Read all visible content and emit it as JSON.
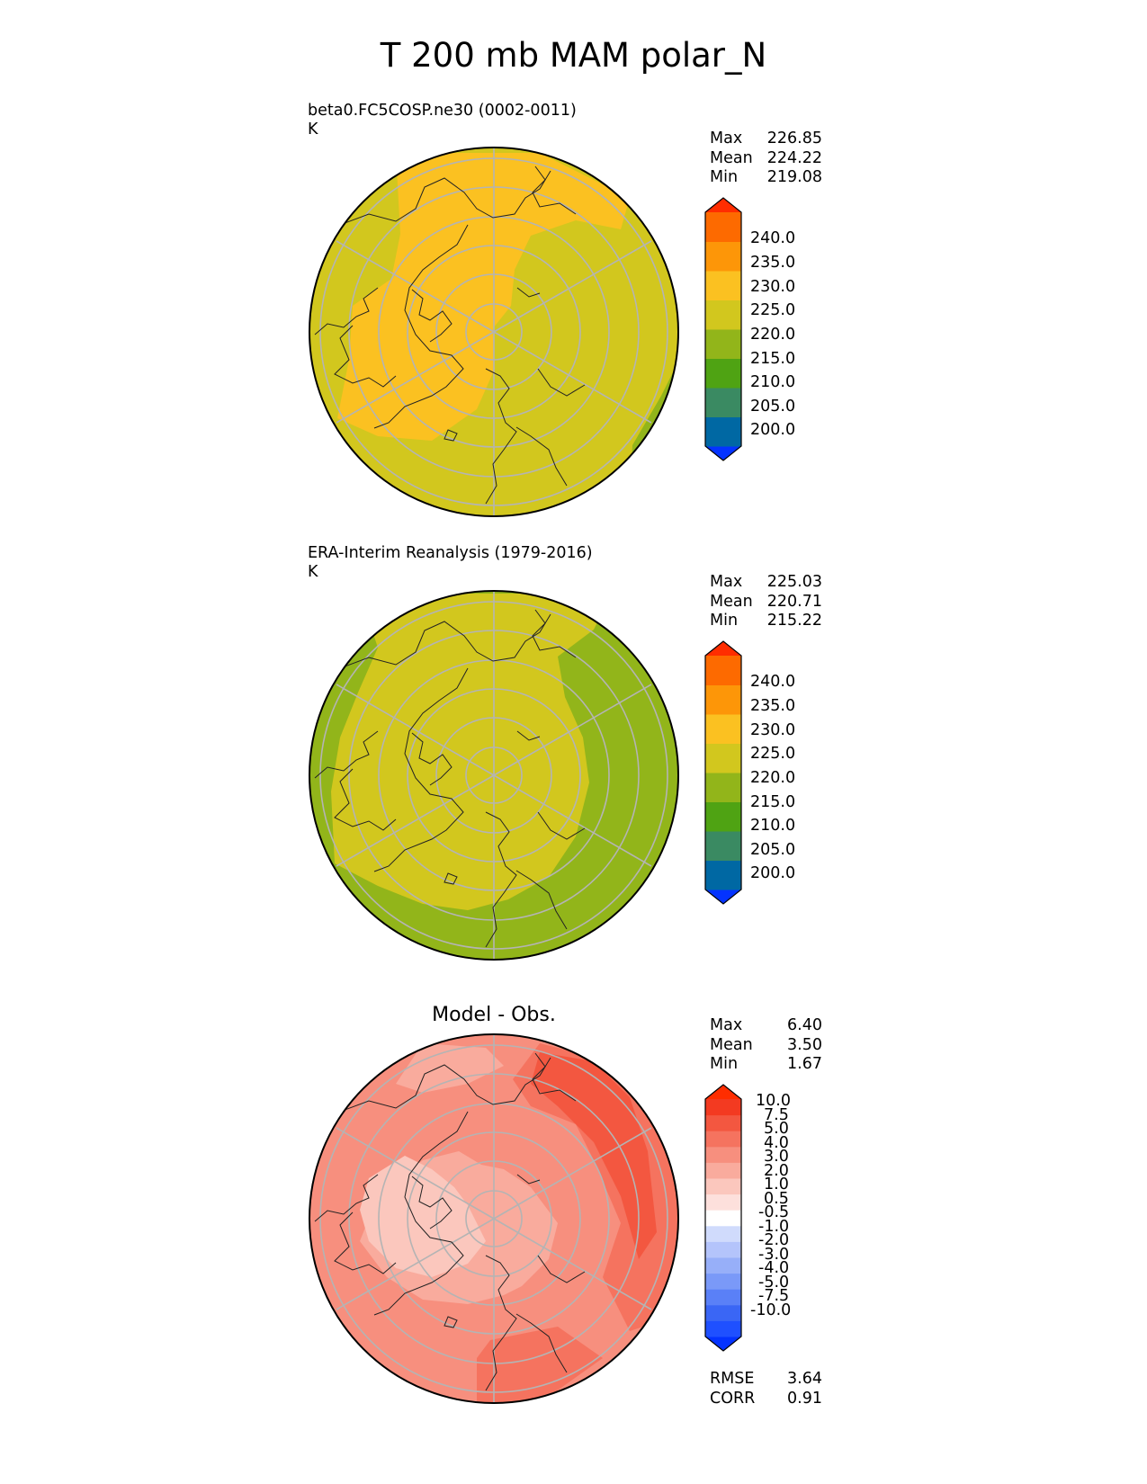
{
  "figure": {
    "title": "T 200 mb MAM polar_N"
  },
  "panels": [
    {
      "title_line1": "beta0.FC5COSP.ne30 (0002-0011)",
      "title_line2": "K",
      "stats": [
        {
          "label": "Max",
          "value": "226.85"
        },
        {
          "label": "Mean",
          "value": "224.22"
        },
        {
          "label": "Min",
          "value": "219.08"
        }
      ],
      "colorbar": {
        "tick_labels": [
          "240.0",
          "235.0",
          "230.0",
          "225.0",
          "220.0",
          "215.0",
          "210.0",
          "205.0",
          "200.0"
        ],
        "colors": [
          "#0433ff",
          "#0068a3",
          "#3a8a62",
          "#4fa313",
          "#92b51a",
          "#d2c71e",
          "#fbc121",
          "#fd9608",
          "#fd6a00",
          "#ff2d00"
        ]
      }
    },
    {
      "title_line1": "ERA-Interim Reanalysis (1979-2016)",
      "title_line2": "K",
      "stats": [
        {
          "label": "Max",
          "value": "225.03"
        },
        {
          "label": "Mean",
          "value": "220.71"
        },
        {
          "label": "Min",
          "value": "215.22"
        }
      ],
      "colorbar": {
        "tick_labels": [
          "240.0",
          "235.0",
          "230.0",
          "225.0",
          "220.0",
          "215.0",
          "210.0",
          "205.0",
          "200.0"
        ],
        "colors": [
          "#0433ff",
          "#0068a3",
          "#3a8a62",
          "#4fa313",
          "#92b51a",
          "#d2c71e",
          "#fbc121",
          "#fd9608",
          "#fd6a00",
          "#ff2d00"
        ]
      }
    },
    {
      "title_center": "Model - Obs.",
      "stats": [
        {
          "label": "Max",
          "value": "6.40"
        },
        {
          "label": "Mean",
          "value": "3.50"
        },
        {
          "label": "Min",
          "value": "1.67"
        }
      ],
      "colorbar": {
        "tick_labels": [
          "10.0",
          "7.5",
          "5.0",
          "4.0",
          "3.0",
          "2.0",
          "1.0",
          "0.5",
          "-0.5",
          "-1.0",
          "-2.0",
          "-3.0",
          "-4.0",
          "-5.0",
          "-7.5",
          "-10.0"
        ],
        "colors": [
          "#0433ff",
          "#1f50ff",
          "#3a66f5",
          "#5a80f7",
          "#7a99f8",
          "#97aff9",
          "#b4c4fb",
          "#d0dbfc",
          "#ffffff",
          "#fde0dc",
          "#fbc7bd",
          "#f9ab9d",
          "#f78f7e",
          "#f5735f",
          "#f35740",
          "#f33a21",
          "#ff2d00"
        ]
      },
      "metrics": [
        {
          "label": "RMSE",
          "value": "3.64"
        },
        {
          "label": "CORR",
          "value": "0.91"
        }
      ]
    }
  ]
}
